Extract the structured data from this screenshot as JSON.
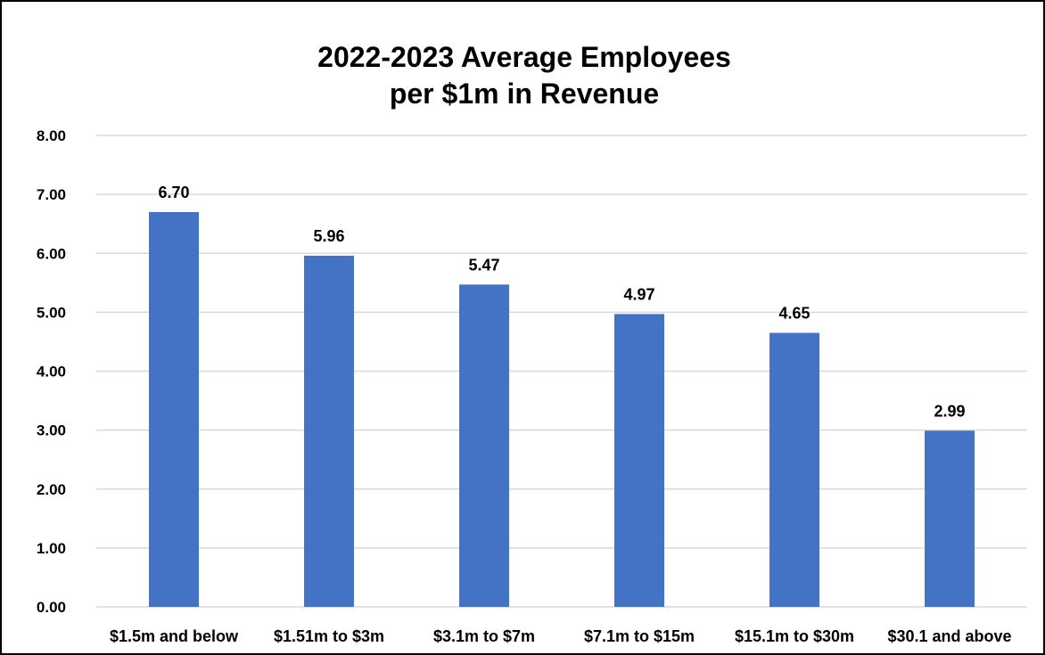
{
  "chart_data": {
    "type": "bar",
    "title": "2022-2023 Average Employees per $1m in Revenue",
    "title_lines": [
      "2022-2023 Average Employees",
      "per $1m in Revenue"
    ],
    "xlabel": "",
    "ylabel": "",
    "categories": [
      "$1.5m and below",
      "$1.51m to $3m",
      "$3.1m to $7m",
      "$7.1m to $15m",
      "$15.1m to $30m",
      "$30.1 and above"
    ],
    "values": [
      6.7,
      5.96,
      5.47,
      4.97,
      4.65,
      2.99
    ],
    "data_labels": [
      "6.70",
      "5.96",
      "5.47",
      "4.97",
      "4.65",
      "2.99"
    ],
    "ylim": [
      0,
      8
    ],
    "yticks": [
      0,
      1,
      2,
      3,
      4,
      5,
      6,
      7,
      8
    ],
    "ytick_labels": [
      "0.00",
      "1.00",
      "2.00",
      "3.00",
      "4.00",
      "5.00",
      "6.00",
      "7.00",
      "8.00"
    ],
    "grid": true,
    "legend": "none",
    "bar_color": "#4472C4",
    "grid_color": "#D9D9D9"
  }
}
